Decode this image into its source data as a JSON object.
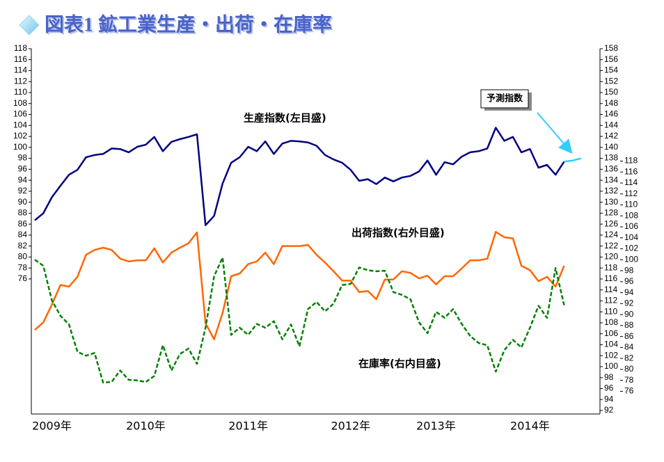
{
  "chart_data": {
    "type": "line",
    "title": "図表1 鉱工業生産・出荷・在庫率",
    "categories": [
      null,
      null,
      "2009年",
      null,
      null,
      null,
      null,
      null,
      null,
      null,
      null,
      null,
      null,
      "2010年",
      null,
      null,
      null,
      null,
      null,
      null,
      null,
      null,
      null,
      null,
      null,
      "2011年",
      null,
      null,
      null,
      null,
      null,
      null,
      null,
      null,
      null,
      null,
      null,
      "2012年",
      null,
      null,
      null,
      null,
      null,
      null,
      null,
      null,
      null,
      "2013年",
      null,
      null,
      null,
      null,
      null,
      null,
      null,
      null,
      null,
      null,
      "2014年",
      null,
      null,
      null,
      null,
      null,
      null
    ],
    "ylim": [
      52,
      118
    ],
    "yticks": [
      76,
      78,
      80,
      82,
      84,
      86,
      88,
      90,
      92,
      94,
      96,
      98,
      100,
      102,
      104,
      106,
      108,
      110,
      112,
      114,
      116,
      118
    ],
    "y2lim": [
      92,
      158
    ],
    "y2ticks": [
      92,
      94,
      96,
      98,
      100,
      102,
      104,
      106,
      108,
      110,
      112,
      114,
      116,
      118,
      120,
      122,
      124,
      126,
      128,
      130,
      132,
      134,
      136,
      138,
      140,
      142,
      144,
      146,
      148,
      150,
      152,
      154,
      156,
      158
    ],
    "y3lim": [
      72.5,
      138.5
    ],
    "y3ticks": [
      76,
      78,
      80,
      82,
      84,
      86,
      88,
      90,
      92,
      94,
      96,
      98,
      100,
      102,
      104,
      106,
      108,
      110,
      112,
      114,
      116,
      118
    ],
    "series": [
      {
        "name": "生産指数(左目盛)",
        "color": "#000080",
        "axis": "y",
        "values": [
          86.7,
          88.0,
          90.9,
          93.0,
          95.0,
          95.9,
          98.2,
          98.6,
          98.8,
          99.8,
          99.7,
          99.1,
          100.1,
          100.5,
          101.9,
          99.3,
          101.0,
          101.5,
          101.9,
          102.4,
          85.8,
          87.5,
          93.4,
          97.2,
          98.2,
          100.1,
          99.3,
          101.1,
          98.8,
          100.7,
          101.2,
          101.1,
          100.9,
          100.3,
          98.6,
          97.8,
          97.2,
          95.9,
          93.9,
          94.2,
          93.3,
          94.5,
          93.8,
          94.5,
          94.8,
          95.6,
          97.6,
          95.0,
          97.3,
          96.9,
          98.3,
          99.1,
          99.3,
          99.8,
          103.6,
          101.2,
          101.9,
          99.1,
          99.7,
          96.3,
          96.8,
          95.0,
          97.4,
          null,
          null
        ]
      },
      {
        "name": "予測指数",
        "color": "#33ccff",
        "axis": "y",
        "values": [
          null,
          null,
          null,
          null,
          null,
          null,
          null,
          null,
          null,
          null,
          null,
          null,
          null,
          null,
          null,
          null,
          null,
          null,
          null,
          null,
          null,
          null,
          null,
          null,
          null,
          null,
          null,
          null,
          null,
          null,
          null,
          null,
          null,
          null,
          null,
          null,
          null,
          null,
          null,
          null,
          null,
          null,
          null,
          null,
          null,
          null,
          null,
          null,
          null,
          null,
          null,
          null,
          null,
          null,
          null,
          null,
          null,
          null,
          null,
          null,
          null,
          null,
          97.4,
          97.6,
          98.0
        ]
      },
      {
        "name": "出荷指数(右外目盛)",
        "color": "#ff6600",
        "axis": "y2",
        "values": [
          106.7,
          108.1,
          111.3,
          114.9,
          114.6,
          116.4,
          120.4,
          121.3,
          121.7,
          121.3,
          119.7,
          119.2,
          119.4,
          119.4,
          121.6,
          119.0,
          120.8,
          121.7,
          122.5,
          124.5,
          107.9,
          105.0,
          109.8,
          116.5,
          117.0,
          118.7,
          119.2,
          120.8,
          118.7,
          122.0,
          122.0,
          122.0,
          122.2,
          120.4,
          119.0,
          117.4,
          115.7,
          115.7,
          113.6,
          113.8,
          112.3,
          115.9,
          115.9,
          117.4,
          117.1,
          116.1,
          116.6,
          115.0,
          116.5,
          116.5,
          117.9,
          119.4,
          119.4,
          119.7,
          124.6,
          123.6,
          123.4,
          118.4,
          117.6,
          115.6,
          116.4,
          114.6,
          118.4,
          null,
          null
        ]
      },
      {
        "name": "在庫率(右内目盛)",
        "color": "#008000",
        "axis": "y3",
        "dashed": true,
        "values": [
          100.0,
          98.9,
          92.6,
          89.8,
          88.2,
          83.2,
          82.5,
          83.0,
          77.6,
          77.7,
          79.8,
          78.1,
          78.0,
          77.7,
          78.8,
          84.4,
          79.8,
          82.8,
          83.8,
          81.0,
          87.6,
          97.0,
          100.4,
          86.3,
          87.6,
          86.3,
          88.3,
          87.6,
          88.8,
          85.5,
          88.2,
          84.2,
          91.0,
          92.3,
          90.6,
          92.0,
          95.4,
          95.6,
          98.6,
          98.1,
          97.9,
          98.0,
          94.1,
          93.6,
          92.8,
          88.6,
          86.6,
          90.5,
          89.4,
          91.0,
          88.3,
          86.1,
          84.8,
          84.4,
          79.6,
          83.5,
          85.4,
          84.0,
          87.6,
          91.6,
          89.4,
          98.5,
          91.7,
          null,
          null
        ]
      }
    ]
  }
}
